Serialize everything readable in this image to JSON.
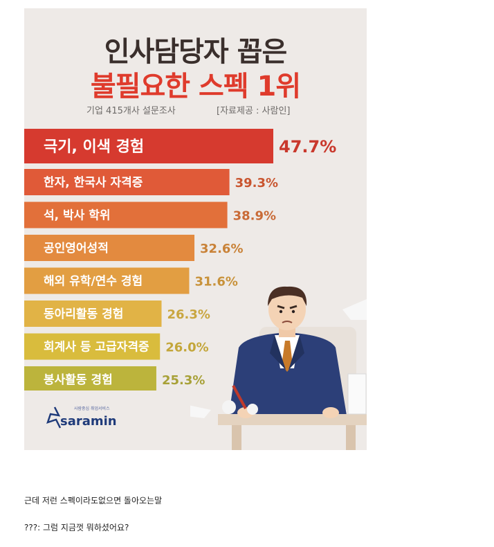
{
  "infographic": {
    "title_line1": "인사담당자 꼽은",
    "title_line2": "불필요한 스펙 1위",
    "survey": "기업 415개사 설문조사",
    "source": "[자료제공 : 사람인]",
    "logo_tagline": "사람중심 취업서비스",
    "logo_text": "saramin"
  },
  "chart_data": {
    "type": "bar",
    "orientation": "horizontal",
    "unit": "%",
    "categories": [
      "극기, 이색 경험",
      "한자, 한국사 자격증",
      "석, 박사 학위",
      "공인영어성적",
      "해외 유학/연수 경험",
      "동아리활동 경험",
      "회계사 등 고급자격증",
      "봉사활동 경험"
    ],
    "values": [
      47.7,
      39.3,
      38.9,
      32.6,
      31.6,
      26.3,
      26.0,
      25.3
    ],
    "value_labels": [
      "47.7%",
      "39.3%",
      "38.9%",
      "32.6%",
      "31.6%",
      "26.3%",
      "26.0%",
      "25.3%"
    ],
    "colors": [
      "#d63a2f",
      "#e05a38",
      "#e2703a",
      "#e38a3f",
      "#e29e42",
      "#e1b346",
      "#d9bc3d",
      "#bcb43c"
    ],
    "value_colors": [
      "#c9382c",
      "#c9552f",
      "#c96a36",
      "#c98238",
      "#c8923a",
      "#c9a640",
      "#c3a63a",
      "#a8a138"
    ]
  },
  "comments": {
    "line1": "근데 저런 스펙이라도없으면 돌아오는말",
    "line2": "???: 그럼 지금껏 뭐하셨어요?"
  }
}
